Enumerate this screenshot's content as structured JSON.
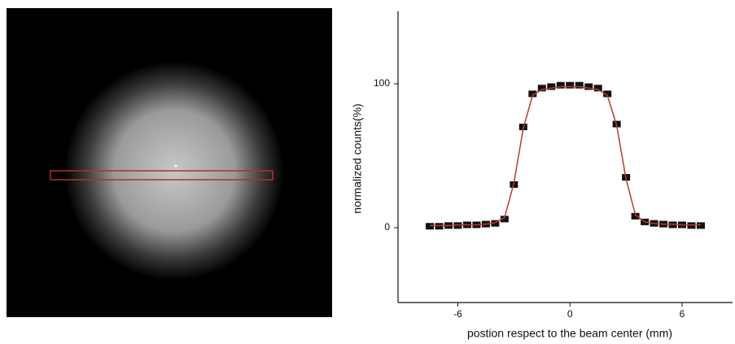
{
  "chart_data": {
    "type": "scatter",
    "x_label": "postion respect to the beam center (mm)",
    "y_label": "normalized counts(%)",
    "x": [
      -7.5,
      -7,
      -6.5,
      -6,
      -5.5,
      -5,
      -4.5,
      -4,
      -3.5,
      -3,
      -2.5,
      -2,
      -1.5,
      -1,
      -0.5,
      0,
      0.5,
      1,
      1.5,
      2,
      2.5,
      3,
      3.5,
      4,
      4.5,
      5,
      5.5,
      6,
      6.5,
      7
    ],
    "series": [
      {
        "color": "#111111",
        "values": [
          1,
          1,
          1.5,
          1.5,
          2,
          2,
          2.5,
          3,
          6,
          30,
          70,
          93,
          97,
          98,
          99,
          99,
          99,
          98,
          97,
          93,
          72,
          35,
          8,
          4,
          3,
          2.5,
          2,
          2,
          1.5,
          1.5
        ]
      },
      {
        "color": "#c0392b",
        "values": [
          1.5,
          1.5,
          1.5,
          2,
          2,
          2,
          2.5,
          3.5,
          7,
          31,
          69,
          92,
          96,
          97,
          98,
          98,
          98,
          97,
          96,
          92,
          71,
          34,
          9,
          4,
          3,
          2.5,
          2.5,
          2,
          2,
          2
        ]
      }
    ],
    "xlim": [
      -9.2,
      8.7
    ],
    "ylim": [
      -50,
      150
    ],
    "xticks": [
      -6,
      0,
      6
    ],
    "yticks": [
      0,
      100
    ]
  }
}
